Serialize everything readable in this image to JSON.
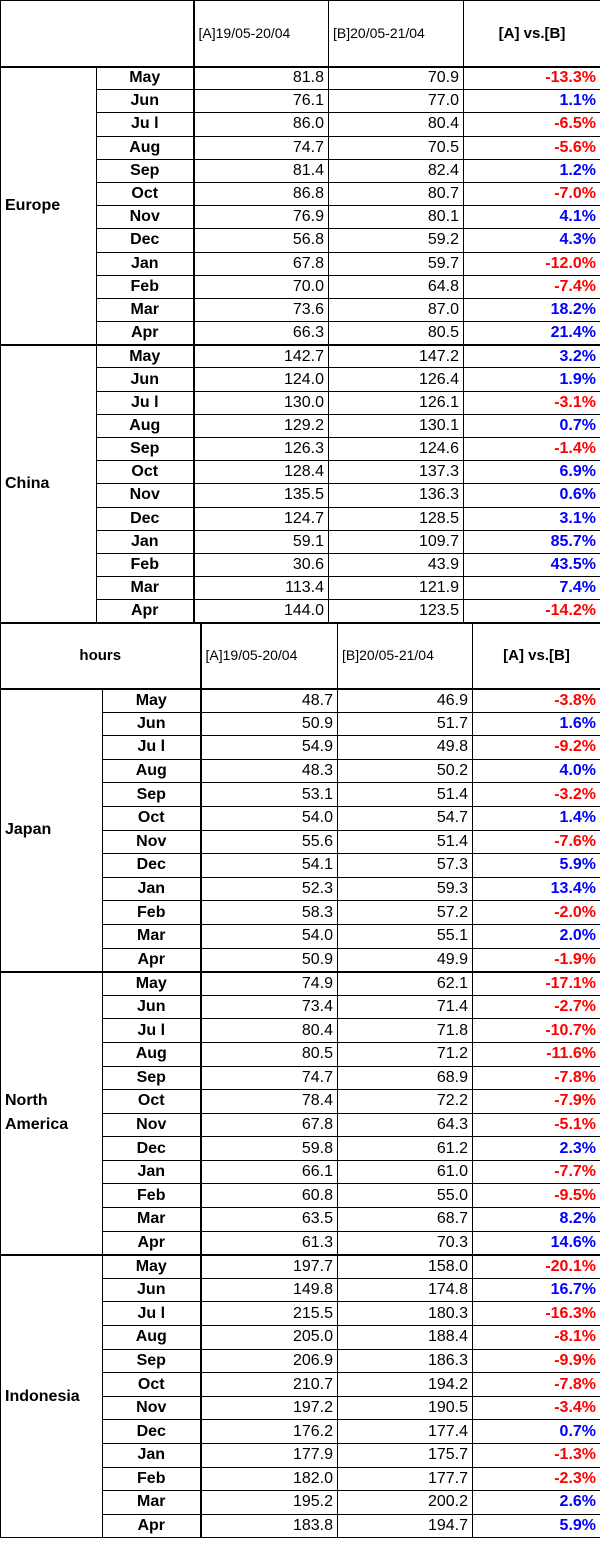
{
  "colors": {
    "negative": "#ff0000",
    "positive": "#0000ff"
  },
  "table1": {
    "header": {
      "corner": "",
      "col_a": "[A]19/05-20/04",
      "col_b": "[B]20/05-21/04",
      "col_cmp": "[A] vs.[B]"
    },
    "groups": [
      {
        "region": "Europe",
        "rows": [
          {
            "month": "May",
            "a": "81.8",
            "b": "70.9",
            "cmp": "-13.3%"
          },
          {
            "month": "Jun",
            "a": "76.1",
            "b": "77.0",
            "cmp": "1.1%"
          },
          {
            "month": "Ju l",
            "a": "86.0",
            "b": "80.4",
            "cmp": "-6.5%"
          },
          {
            "month": "Aug",
            "a": "74.7",
            "b": "70.5",
            "cmp": "-5.6%"
          },
          {
            "month": "Sep",
            "a": "81.4",
            "b": "82.4",
            "cmp": "1.2%"
          },
          {
            "month": "Oct",
            "a": "86.8",
            "b": "80.7",
            "cmp": "-7.0%"
          },
          {
            "month": "Nov",
            "a": "76.9",
            "b": "80.1",
            "cmp": "4.1%"
          },
          {
            "month": "Dec",
            "a": "56.8",
            "b": "59.2",
            "cmp": "4.3%"
          },
          {
            "month": "Jan",
            "a": "67.8",
            "b": "59.7",
            "cmp": "-12.0%"
          },
          {
            "month": "Feb",
            "a": "70.0",
            "b": "64.8",
            "cmp": "-7.4%"
          },
          {
            "month": "Mar",
            "a": "73.6",
            "b": "87.0",
            "cmp": "18.2%"
          },
          {
            "month": "Apr",
            "a": "66.3",
            "b": "80.5",
            "cmp": "21.4%"
          }
        ]
      },
      {
        "region": "China",
        "rows": [
          {
            "month": "May",
            "a": "142.7",
            "b": "147.2",
            "cmp": "3.2%"
          },
          {
            "month": "Jun",
            "a": "124.0",
            "b": "126.4",
            "cmp": "1.9%"
          },
          {
            "month": "Ju l",
            "a": "130.0",
            "b": "126.1",
            "cmp": "-3.1%"
          },
          {
            "month": "Aug",
            "a": "129.2",
            "b": "130.1",
            "cmp": "0.7%"
          },
          {
            "month": "Sep",
            "a": "126.3",
            "b": "124.6",
            "cmp": "-1.4%"
          },
          {
            "month": "Oct",
            "a": "128.4",
            "b": "137.3",
            "cmp": "6.9%"
          },
          {
            "month": "Nov",
            "a": "135.5",
            "b": "136.3",
            "cmp": "0.6%"
          },
          {
            "month": "Dec",
            "a": "124.7",
            "b": "128.5",
            "cmp": "3.1%"
          },
          {
            "month": "Jan",
            "a": "59.1",
            "b": "109.7",
            "cmp": "85.7%"
          },
          {
            "month": "Feb",
            "a": "30.6",
            "b": "43.9",
            "cmp": "43.5%"
          },
          {
            "month": "Mar",
            "a": "113.4",
            "b": "121.9",
            "cmp": "7.4%"
          },
          {
            "month": "Apr",
            "a": "144.0",
            "b": "123.5",
            "cmp": "-14.2%"
          }
        ]
      }
    ]
  },
  "table2": {
    "header": {
      "corner": "hours",
      "col_a": "[A]19/05-20/04",
      "col_b": "[B]20/05-21/04",
      "col_cmp": "[A] vs.[B]"
    },
    "groups": [
      {
        "region": "Japan",
        "rows": [
          {
            "month": "May",
            "a": "48.7",
            "b": "46.9",
            "cmp": "-3.8%"
          },
          {
            "month": "Jun",
            "a": "50.9",
            "b": "51.7",
            "cmp": "1.6%"
          },
          {
            "month": "Ju l",
            "a": "54.9",
            "b": "49.8",
            "cmp": "-9.2%"
          },
          {
            "month": "Aug",
            "a": "48.3",
            "b": "50.2",
            "cmp": "4.0%"
          },
          {
            "month": "Sep",
            "a": "53.1",
            "b": "51.4",
            "cmp": "-3.2%"
          },
          {
            "month": "Oct",
            "a": "54.0",
            "b": "54.7",
            "cmp": "1.4%"
          },
          {
            "month": "Nov",
            "a": "55.6",
            "b": "51.4",
            "cmp": "-7.6%"
          },
          {
            "month": "Dec",
            "a": "54.1",
            "b": "57.3",
            "cmp": "5.9%"
          },
          {
            "month": "Jan",
            "a": "52.3",
            "b": "59.3",
            "cmp": "13.4%"
          },
          {
            "month": "Feb",
            "a": "58.3",
            "b": "57.2",
            "cmp": "-2.0%"
          },
          {
            "month": "Mar",
            "a": "54.0",
            "b": "55.1",
            "cmp": "2.0%"
          },
          {
            "month": "Apr",
            "a": "50.9",
            "b": "49.9",
            "cmp": "-1.9%"
          }
        ]
      },
      {
        "region": "North America",
        "rows": [
          {
            "month": "May",
            "a": "74.9",
            "b": "62.1",
            "cmp": "-17.1%"
          },
          {
            "month": "Jun",
            "a": "73.4",
            "b": "71.4",
            "cmp": "-2.7%"
          },
          {
            "month": "Ju l",
            "a": "80.4",
            "b": "71.8",
            "cmp": "-10.7%"
          },
          {
            "month": "Aug",
            "a": "80.5",
            "b": "71.2",
            "cmp": "-11.6%"
          },
          {
            "month": "Sep",
            "a": "74.7",
            "b": "68.9",
            "cmp": "-7.8%"
          },
          {
            "month": "Oct",
            "a": "78.4",
            "b": "72.2",
            "cmp": "-7.9%"
          },
          {
            "month": "Nov",
            "a": "67.8",
            "b": "64.3",
            "cmp": "-5.1%"
          },
          {
            "month": "Dec",
            "a": "59.8",
            "b": "61.2",
            "cmp": "2.3%"
          },
          {
            "month": "Jan",
            "a": "66.1",
            "b": "61.0",
            "cmp": "-7.7%"
          },
          {
            "month": "Feb",
            "a": "60.8",
            "b": "55.0",
            "cmp": "-9.5%"
          },
          {
            "month": "Mar",
            "a": "63.5",
            "b": "68.7",
            "cmp": "8.2%"
          },
          {
            "month": "Apr",
            "a": "61.3",
            "b": "70.3",
            "cmp": "14.6%"
          }
        ]
      },
      {
        "region": "Indonesia",
        "rows": [
          {
            "month": "May",
            "a": "197.7",
            "b": "158.0",
            "cmp": "-20.1%"
          },
          {
            "month": "Jun",
            "a": "149.8",
            "b": "174.8",
            "cmp": "16.7%"
          },
          {
            "month": "Ju l",
            "a": "215.5",
            "b": "180.3",
            "cmp": "-16.3%"
          },
          {
            "month": "Aug",
            "a": "205.0",
            "b": "188.4",
            "cmp": "-8.1%"
          },
          {
            "month": "Sep",
            "a": "206.9",
            "b": "186.3",
            "cmp": "-9.9%"
          },
          {
            "month": "Oct",
            "a": "210.7",
            "b": "194.2",
            "cmp": "-7.8%"
          },
          {
            "month": "Nov",
            "a": "197.2",
            "b": "190.5",
            "cmp": "-3.4%"
          },
          {
            "month": "Dec",
            "a": "176.2",
            "b": "177.4",
            "cmp": "0.7%"
          },
          {
            "month": "Jan",
            "a": "177.9",
            "b": "175.7",
            "cmp": "-1.3%"
          },
          {
            "month": "Feb",
            "a": "182.0",
            "b": "177.7",
            "cmp": "-2.3%"
          },
          {
            "month": "Mar",
            "a": "195.2",
            "b": "200.2",
            "cmp": "2.6%"
          },
          {
            "month": "Apr",
            "a": "183.8",
            "b": "194.7",
            "cmp": "5.9%"
          }
        ]
      }
    ]
  }
}
